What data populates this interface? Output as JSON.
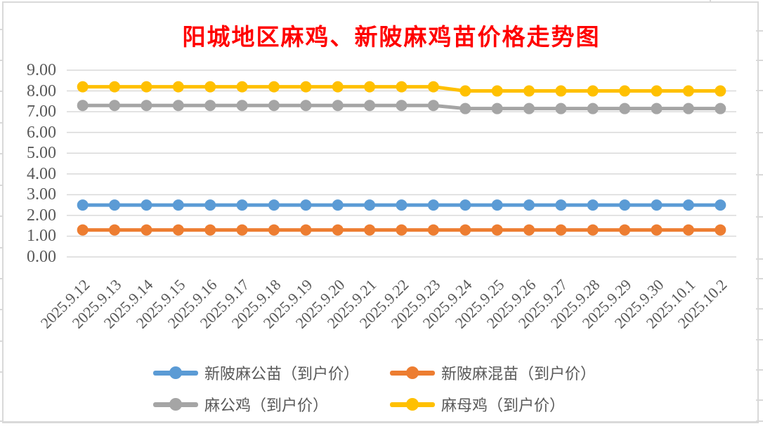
{
  "chart_data": {
    "type": "line",
    "title": "阳城地区麻鸡、新陂麻鸡苗价格走势图",
    "title_color": "#FF0000",
    "label_color": "#595959",
    "gridline_color": "#D9D9D9",
    "background_color": "#FFFFFF",
    "grid": true,
    "legend_position": "bottom",
    "categories": [
      "2025.9.12",
      "2025.9.13",
      "2025.9.14",
      "2025.9.15",
      "2025.9.16",
      "2025.9.17",
      "2025.9.18",
      "2025.9.19",
      "2025.9.20",
      "2025.9.21",
      "2025.9.22",
      "2025.9.23",
      "2025.9.24",
      "2025.9.25",
      "2025.9.26",
      "2025.9.27",
      "2025.9.28",
      "2025.9.29",
      "2025.9.30",
      "2025.10.1",
      "2025.10.2"
    ],
    "y_axis": {
      "min": 0,
      "max": 9,
      "step": 1,
      "tick_labels": [
        "9.00",
        "8.00",
        "7.00",
        "6.00",
        "5.00",
        "4.00",
        "3.00",
        "2.00",
        "1.00",
        "0.00"
      ]
    },
    "series": [
      {
        "name": "新陂麻公苗（到户价）",
        "color": "#5B9BD5",
        "values": [
          2.5,
          2.5,
          2.5,
          2.5,
          2.5,
          2.5,
          2.5,
          2.5,
          2.5,
          2.5,
          2.5,
          2.5,
          2.5,
          2.5,
          2.5,
          2.5,
          2.5,
          2.5,
          2.5,
          2.5,
          2.5
        ]
      },
      {
        "name": "新陂麻混苗（到户价）",
        "color": "#ED7D31",
        "values": [
          1.3,
          1.3,
          1.3,
          1.3,
          1.3,
          1.3,
          1.3,
          1.3,
          1.3,
          1.3,
          1.3,
          1.3,
          1.3,
          1.3,
          1.3,
          1.3,
          1.3,
          1.3,
          1.3,
          1.3,
          1.3
        ]
      },
      {
        "name": "麻公鸡（到户价）",
        "color": "#A5A5A5",
        "values": [
          7.3,
          7.3,
          7.3,
          7.3,
          7.3,
          7.3,
          7.3,
          7.3,
          7.3,
          7.3,
          7.3,
          7.3,
          7.15,
          7.15,
          7.15,
          7.15,
          7.15,
          7.15,
          7.15,
          7.15,
          7.15
        ]
      },
      {
        "name": "麻母鸡（到户价）",
        "color": "#FFC000",
        "values": [
          8.2,
          8.2,
          8.2,
          8.2,
          8.2,
          8.2,
          8.2,
          8.2,
          8.2,
          8.2,
          8.2,
          8.2,
          8.0,
          8.0,
          8.0,
          8.0,
          8.0,
          8.0,
          8.0,
          8.0,
          8.0
        ]
      }
    ]
  }
}
